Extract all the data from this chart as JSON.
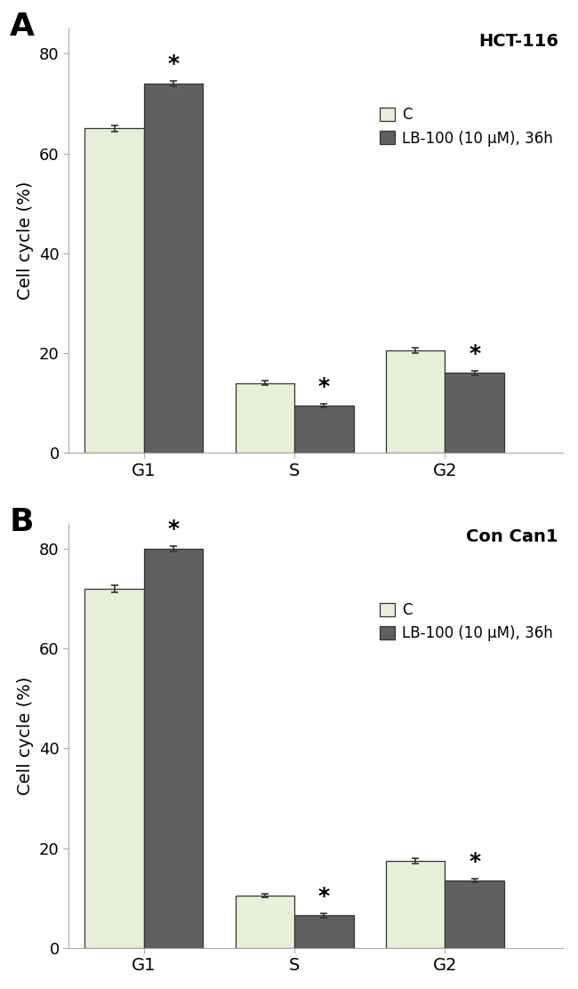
{
  "panel_A": {
    "title": "HCT-116",
    "label": "A",
    "categories": [
      "G1",
      "S",
      "G2"
    ],
    "control": [
      65.0,
      14.0,
      20.5
    ],
    "treatment": [
      74.0,
      9.5,
      16.0
    ],
    "control_err": [
      0.6,
      0.4,
      0.5
    ],
    "treatment_err": [
      0.5,
      0.4,
      0.5
    ],
    "significance": [
      true,
      true,
      true
    ],
    "ylim": [
      0,
      85
    ],
    "yticks": [
      0,
      20,
      40,
      60,
      80
    ]
  },
  "panel_B": {
    "title": "Con Can1",
    "label": "B",
    "categories": [
      "G1",
      "S",
      "G2"
    ],
    "control": [
      72.0,
      10.5,
      17.5
    ],
    "treatment": [
      80.0,
      6.5,
      13.5
    ],
    "control_err": [
      0.7,
      0.4,
      0.5
    ],
    "treatment_err": [
      0.5,
      0.4,
      0.4
    ],
    "significance": [
      true,
      true,
      true
    ],
    "ylim": [
      0,
      85
    ],
    "yticks": [
      0,
      20,
      40,
      60,
      80
    ]
  },
  "color_control": "#e8efd8",
  "color_treatment": "#606060",
  "bar_edge_color": "#333333",
  "ylabel": "Cell cycle (%)",
  "legend_label_control": "C",
  "legend_label_treatment": "LB-100 (10 μM), 36h",
  "bar_width": 0.55,
  "group_positions": [
    0.6,
    2.0,
    3.4
  ],
  "xlim": [
    -0.1,
    4.5
  ],
  "figure_bg": "#ffffff",
  "font_size_label": 26,
  "font_size_title": 14,
  "font_size_axis": 13,
  "font_size_tick": 13,
  "font_size_legend": 12,
  "font_size_star": 18
}
